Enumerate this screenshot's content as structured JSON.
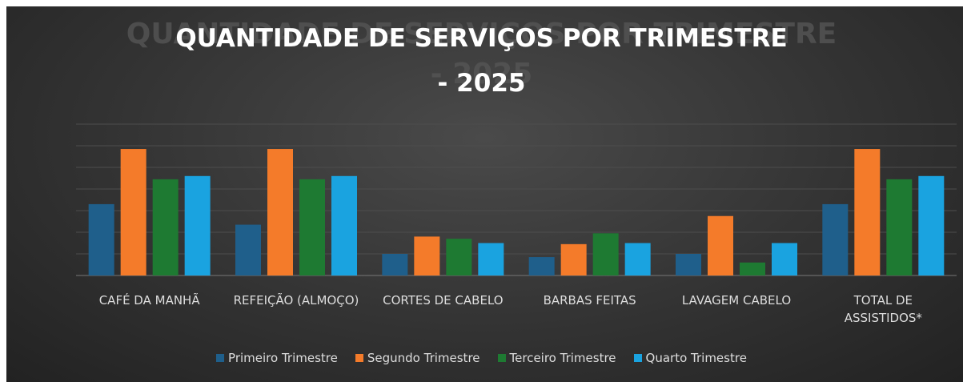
{
  "chart_data": {
    "type": "bar",
    "title": "QUANTIDADE DE SERVIÇOS POR TRIMESTRE - 2025",
    "categories": [
      "CAFÉ DA MANHÃ",
      "REFEIÇÃO (ALMOÇO)",
      "CORTES DE CABELO",
      "BARBAS FEITAS",
      "LAVAGEM CABELO",
      "TOTAL DE ASSISTIDOS*"
    ],
    "series": [
      {
        "name": "Primeiro Trimestre",
        "color": "#1f5f8b",
        "values": [
          3.3,
          2.35,
          1.0,
          0.85,
          1.0,
          3.3
        ]
      },
      {
        "name": "Segundo Trimestre",
        "color": "#f47b2a",
        "values": [
          5.85,
          5.85,
          1.8,
          1.45,
          2.75,
          5.85
        ]
      },
      {
        "name": "Terceiro Trimestre",
        "color": "#1e7a32",
        "values": [
          4.45,
          4.45,
          1.7,
          1.95,
          0.6,
          4.45
        ]
      },
      {
        "name": "Quarto Trimestre",
        "color": "#1aa3e0",
        "values": [
          4.6,
          4.6,
          1.5,
          1.5,
          1.5,
          4.6
        ]
      }
    ],
    "ylim": [
      0,
      7
    ],
    "yticks": [
      0,
      1,
      2,
      3,
      4,
      5,
      6,
      7
    ],
    "grid": true,
    "legend": "bottom"
  }
}
